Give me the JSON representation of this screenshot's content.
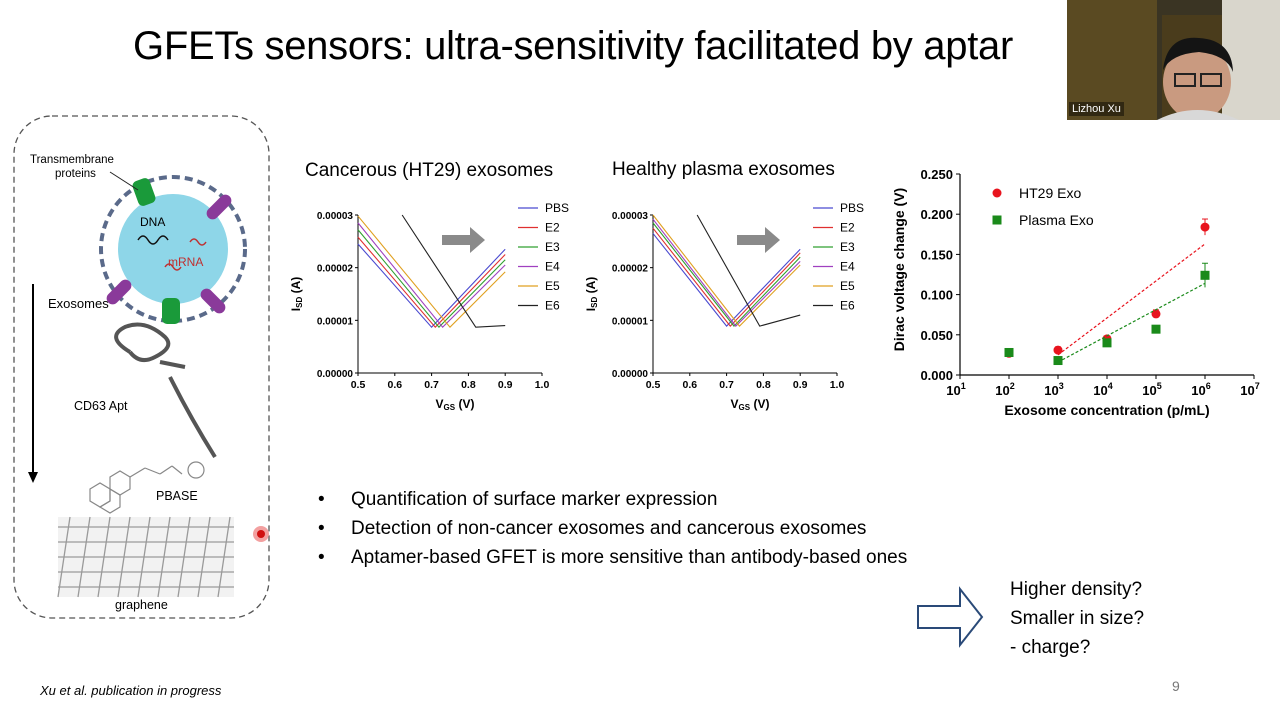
{
  "slide": {
    "title": "GFETs sensors: ultra-sensitivity facilitated by aptar",
    "footer": "Xu et al. publication in progress",
    "page_number": "9"
  },
  "webcam": {
    "participant_name": "Lizhou Xu"
  },
  "schematic": {
    "transmembrane_label_1": "Transmembrane",
    "transmembrane_label_2": "proteins",
    "dna_label": "DNA",
    "mrna_label": "mRNA",
    "exosomes_label": "Exosomes",
    "apt_label": "CD63 Apt",
    "pbase_label": "PBASE",
    "graphene_label": "graphene"
  },
  "bullets": [
    "Quantification of surface marker expression",
    "Detection of non-cancer exosomes and cancerous exosomes",
    "Aptamer-based GFET is more sensitive than antibody-based ones"
  ],
  "questions": [
    "Higher density?",
    "Smaller in size?",
    "- charge?"
  ],
  "colors": {
    "ht29": "#e8141e",
    "plasma": "#1a8a1a"
  },
  "chart_data": [
    {
      "type": "line",
      "title": "Cancerous (HT29) exosomes",
      "xlabel": "V",
      "xlabel_sub": "GS",
      "xlabel_unit": "(V)",
      "ylabel": "I",
      "ylabel_sub": "SD",
      "ylabel_unit": "(A)",
      "xlim": [
        0.5,
        1.0
      ],
      "ylim": [
        0,
        3e-05
      ],
      "xticks": [
        "0.5",
        "0.6",
        "0.7",
        "0.8",
        "0.9",
        "1.0"
      ],
      "yticks": [
        "0.00000",
        "0.00001",
        "0.00002",
        "0.00003"
      ],
      "legend_position": "top-right",
      "series": [
        {
          "name": "PBS",
          "color": "#4a4ad0",
          "x": [
            0.5,
            0.7,
            0.9
          ],
          "y": [
            2.45e-05,
            8.7e-06,
            2.35e-05
          ]
        },
        {
          "name": "E2",
          "color": "#e03030",
          "x": [
            0.5,
            0.71,
            0.9
          ],
          "y": [
            2.58e-05,
            8.7e-06,
            2.25e-05
          ]
        },
        {
          "name": "E3",
          "color": "#30a030",
          "x": [
            0.5,
            0.72,
            0.9
          ],
          "y": [
            2.72e-05,
            8.7e-06,
            2.15e-05
          ]
        },
        {
          "name": "E4",
          "color": "#a040c0",
          "x": [
            0.5,
            0.73,
            0.9
          ],
          "y": [
            2.85e-05,
            8.7e-06,
            2.05e-05
          ]
        },
        {
          "name": "E5",
          "color": "#e0a020",
          "x": [
            0.5,
            0.75,
            0.9
          ],
          "y": [
            2.98e-05,
            8.7e-06,
            1.92e-05
          ]
        },
        {
          "name": "E6",
          "color": "#222222",
          "x": [
            0.62,
            0.82,
            0.9
          ],
          "y": [
            3e-05,
            8.7e-06,
            9e-06
          ]
        }
      ]
    },
    {
      "type": "line",
      "title": "Healthy plasma exosomes",
      "xlabel": "V",
      "xlabel_sub": "GS",
      "xlabel_unit": "(V)",
      "ylabel": "I",
      "ylabel_sub": "SD",
      "ylabel_unit": "(A)",
      "xlim": [
        0.5,
        1.0
      ],
      "ylim": [
        0,
        3e-05
      ],
      "xticks": [
        "0.5",
        "0.6",
        "0.7",
        "0.8",
        "0.9",
        "1.0"
      ],
      "yticks": [
        "0.00000",
        "0.00001",
        "0.00002",
        "0.00003"
      ],
      "legend_position": "top-right",
      "series": [
        {
          "name": "PBS",
          "color": "#4a4ad0",
          "x": [
            0.5,
            0.7,
            0.9
          ],
          "y": [
            2.65e-05,
            8.9e-06,
            2.35e-05
          ]
        },
        {
          "name": "E2",
          "color": "#e03030",
          "x": [
            0.5,
            0.71,
            0.9
          ],
          "y": [
            2.75e-05,
            8.9e-06,
            2.28e-05
          ]
        },
        {
          "name": "E3",
          "color": "#30a030",
          "x": [
            0.5,
            0.72,
            0.9
          ],
          "y": [
            2.85e-05,
            8.9e-06,
            2.2e-05
          ]
        },
        {
          "name": "E4",
          "color": "#a040c0",
          "x": [
            0.5,
            0.725,
            0.9
          ],
          "y": [
            2.92e-05,
            8.9e-06,
            2.12e-05
          ]
        },
        {
          "name": "E5",
          "color": "#e0a020",
          "x": [
            0.5,
            0.735,
            0.9
          ],
          "y": [
            3e-05,
            8.9e-06,
            2.05e-05
          ]
        },
        {
          "name": "E6",
          "color": "#222222",
          "x": [
            0.62,
            0.79,
            0.9
          ],
          "y": [
            3e-05,
            8.9e-06,
            1.1e-05
          ]
        }
      ]
    },
    {
      "type": "scatter",
      "ylabel": "Dirac voltage change (V)",
      "xlabel": "Exosome concentration (p/mL)",
      "xscale": "log",
      "xlim": [
        10,
        10000000
      ],
      "ylim": [
        0,
        0.25
      ],
      "xtick_exponents": [
        "1",
        "2",
        "3",
        "4",
        "5",
        "6",
        "7"
      ],
      "xtick_base": "10",
      "yticks": [
        "0.000",
        "0.050",
        "0.100",
        "0.150",
        "0.200",
        "0.250"
      ],
      "legend_position": "top-left",
      "series": [
        {
          "name": "HT29 Exo",
          "marker": "circle",
          "color": "#e8141e",
          "x": [
            100,
            1000,
            10000,
            100000,
            1000000
          ],
          "y": [
            0.027,
            0.031,
            0.045,
            0.076,
            0.184
          ],
          "err": [
            0.003,
            0.004,
            0.003,
            0.005,
            0.01
          ],
          "fit_x": [
            1000,
            1000000
          ],
          "fit_y": [
            0.025,
            0.163
          ]
        },
        {
          "name": "Plasma Exo",
          "marker": "square",
          "color": "#1a8a1a",
          "x": [
            100,
            1000,
            10000,
            100000,
            1000000
          ],
          "y": [
            0.028,
            0.018,
            0.04,
            0.057,
            0.124
          ],
          "err": [
            0.003,
            0.003,
            0.003,
            0.003,
            0.015
          ],
          "fit_x": [
            1000,
            1000000
          ],
          "fit_y": [
            0.016,
            0.114
          ]
        }
      ]
    }
  ]
}
